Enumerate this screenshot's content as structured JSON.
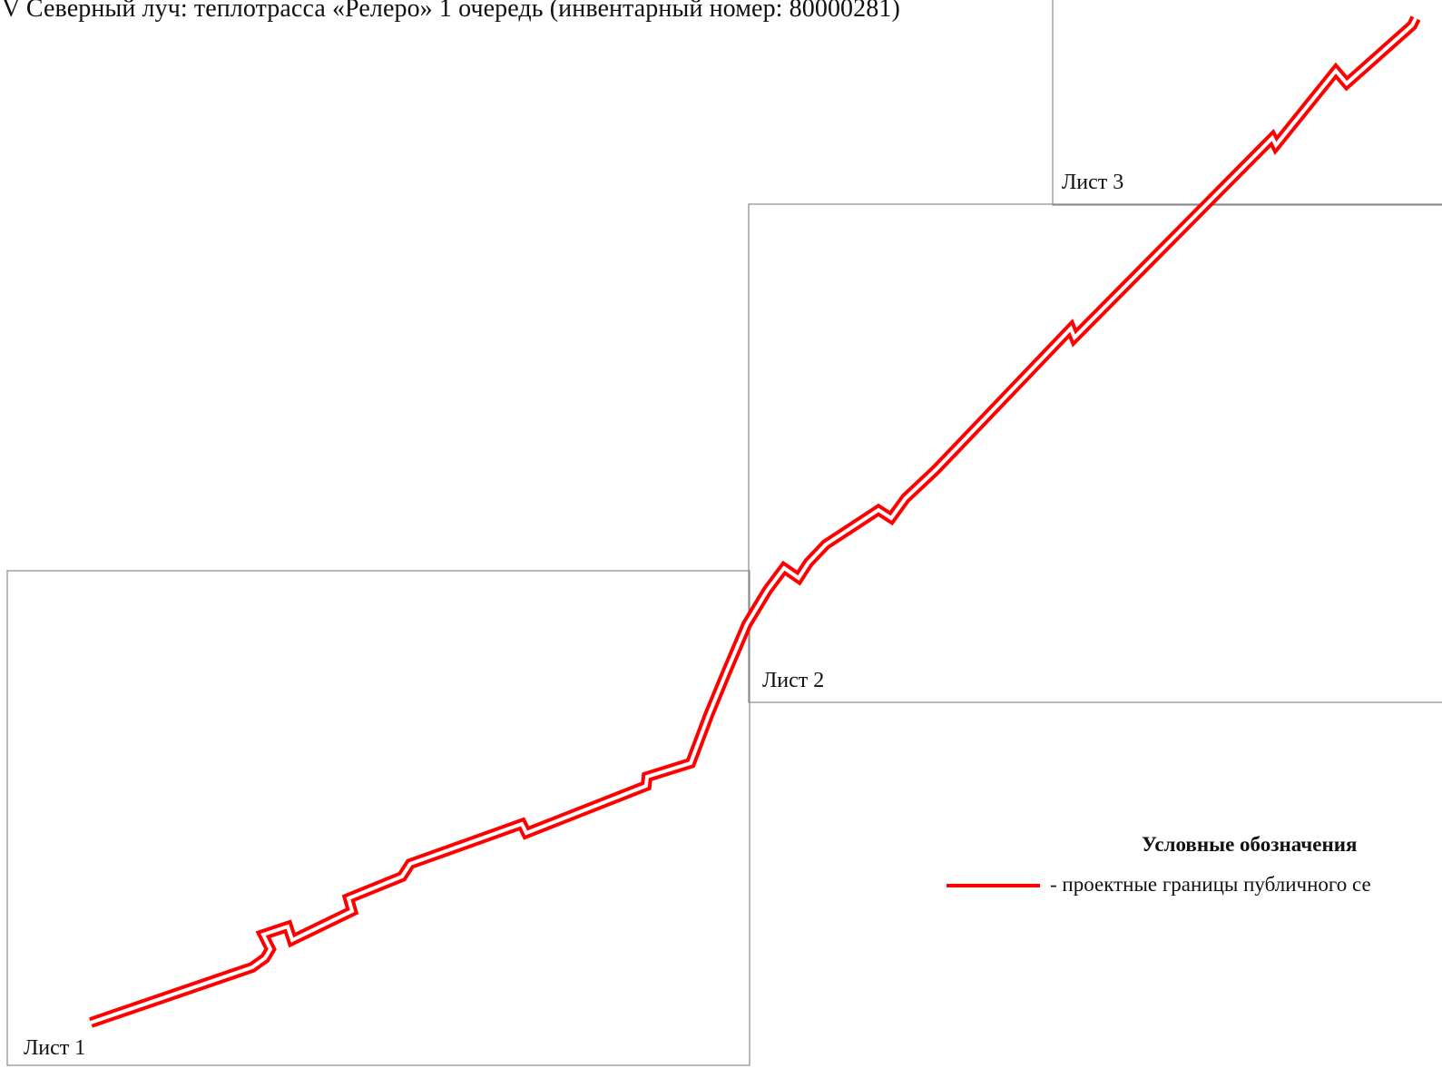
{
  "title": "V Северный луч: теплотрасса «Релеро» 1 очередь (инвентарный номер: 80000281)",
  "sheets": [
    {
      "label": "Лист 1"
    },
    {
      "label": "Лист 2"
    },
    {
      "label": "Лист 3"
    }
  ],
  "legend": {
    "title": "Условные обозначения",
    "item_text": "- проектные границы публичного се",
    "line_color": "#ff0000"
  },
  "colors": {
    "boundary_line": "#ff0000",
    "sheet_frame": "#8a8a8a",
    "background": "#ffffff"
  }
}
